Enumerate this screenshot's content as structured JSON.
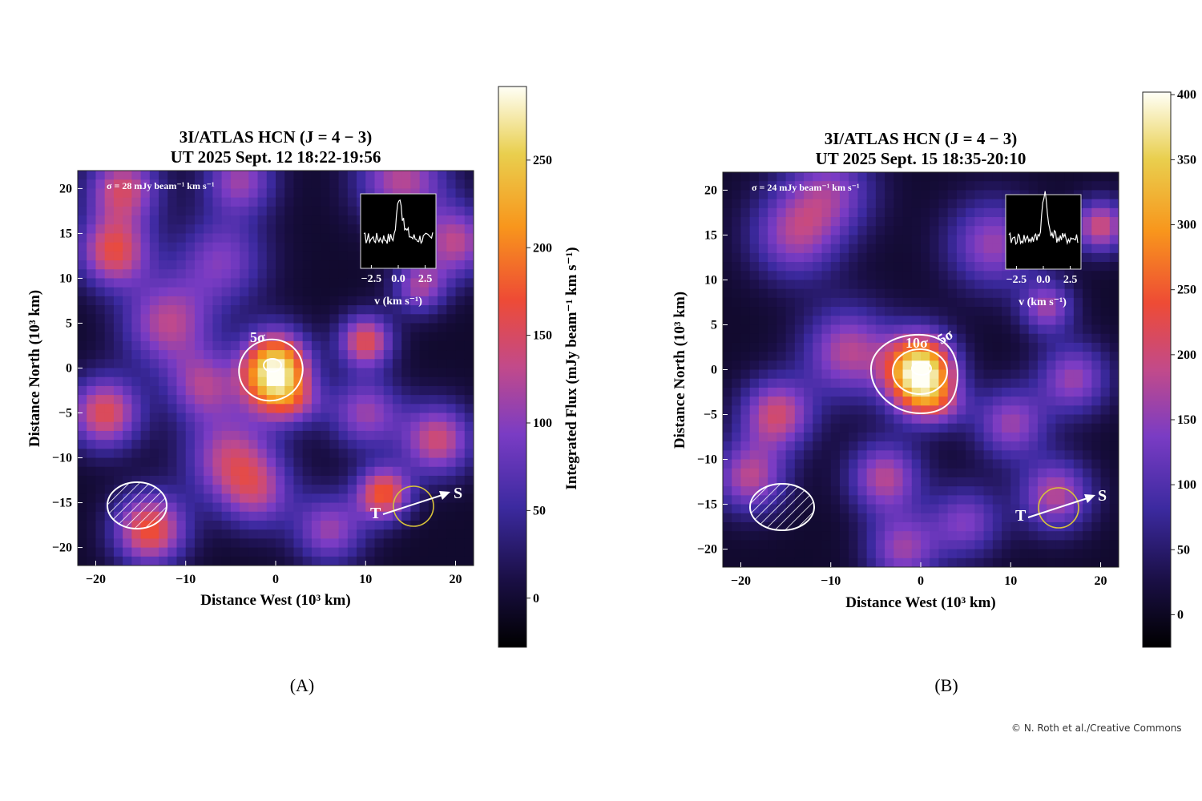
{
  "credit": "© N. Roth et al./Creative Commons",
  "panels": [
    {
      "label": "(A)",
      "title_line1": "3I/ATLAS HCN (J = 4 − 3)",
      "title_line2": "UT 2025 Sept. 12 18:22-19:56",
      "sigma_text": "σ = 28 mJy beam⁻¹ km s⁻¹",
      "xlabel": "Distance West (10³ km)",
      "ylabel": "Distance North (10³ km)",
      "contour_labels": [
        "5σ"
      ],
      "direction_labels": {
        "sun": "S",
        "tail": "T"
      },
      "inset_xlabel": "v (km s⁻¹)"
    },
    {
      "label": "(B)",
      "title_line1": "3I/ATLAS HCN (J = 4 − 3)",
      "title_line2": "UT 2025 Sept. 15 18:35-20:10",
      "sigma_text": "σ = 24 mJy beam⁻¹ km s⁻¹",
      "xlabel": "Distance West (10³ km)",
      "ylabel": "Distance North (10³ km)",
      "contour_labels": [
        "10σ",
        "5σ"
      ],
      "direction_labels": {
        "sun": "S",
        "tail": "T"
      },
      "inset_xlabel": "v (km s⁻¹)"
    }
  ],
  "chart_data": [
    {
      "type": "heatmap",
      "title": "3I/ATLAS HCN (J = 4 − 3) UT 2025 Sept. 12 18:22-19:56",
      "xlabel": "Distance West (10³ km)",
      "ylabel": "Distance North (10³ km)",
      "xlim": [
        -22,
        22
      ],
      "ylim": [
        -22,
        22
      ],
      "x_ticks": [
        -20,
        -10,
        0,
        10,
        20
      ],
      "y_ticks": [
        20,
        15,
        10,
        5,
        0,
        -5,
        -10,
        -15,
        -20
      ],
      "colorbar": {
        "label": "Integrated Flux (mJy beam⁻¹ km s⁻¹)",
        "range": [
          -28,
          292
        ],
        "ticks": [
          0,
          50,
          100,
          150,
          200,
          250
        ],
        "colormap": "CMRmap"
      },
      "sigma_mjy": 28,
      "peak": {
        "x": 0,
        "y": 0,
        "value": 290
      },
      "contours": [
        "5σ"
      ],
      "inset": {
        "x_ticks": [
          -2.5,
          0.0,
          2.5
        ],
        "xlabel": "v (km s⁻¹)"
      },
      "beam": {
        "x": -15.5,
        "y": -15.5
      },
      "sun_direction": "S",
      "tail_direction": "T"
    },
    {
      "type": "heatmap",
      "title": "3I/ATLAS HCN (J = 4 − 3) UT 2025 Sept. 15 18:35-20:10",
      "xlabel": "Distance West (10³ km)",
      "ylabel": "Distance North (10³ km)",
      "xlim": [
        -22,
        22
      ],
      "ylim": [
        -22,
        22
      ],
      "x_ticks": [
        -20,
        -10,
        0,
        10,
        20
      ],
      "y_ticks": [
        20,
        15,
        10,
        5,
        0,
        -5,
        -10,
        -15,
        -20
      ],
      "colorbar": {
        "label": "",
        "range": [
          -25,
          402
        ],
        "ticks": [
          0,
          50,
          100,
          150,
          200,
          250,
          300,
          350,
          400
        ],
        "colormap": "CMRmap"
      },
      "sigma_mjy": 24,
      "peak": {
        "x": 0,
        "y": 0,
        "value": 400
      },
      "contours": [
        "10σ",
        "5σ"
      ],
      "inset": {
        "x_ticks": [
          -2.5,
          0.0,
          2.5
        ],
        "xlabel": "v (km s⁻¹)"
      },
      "beam": {
        "x": -15.5,
        "y": -15.5
      },
      "sun_direction": "S",
      "tail_direction": "T"
    }
  ]
}
